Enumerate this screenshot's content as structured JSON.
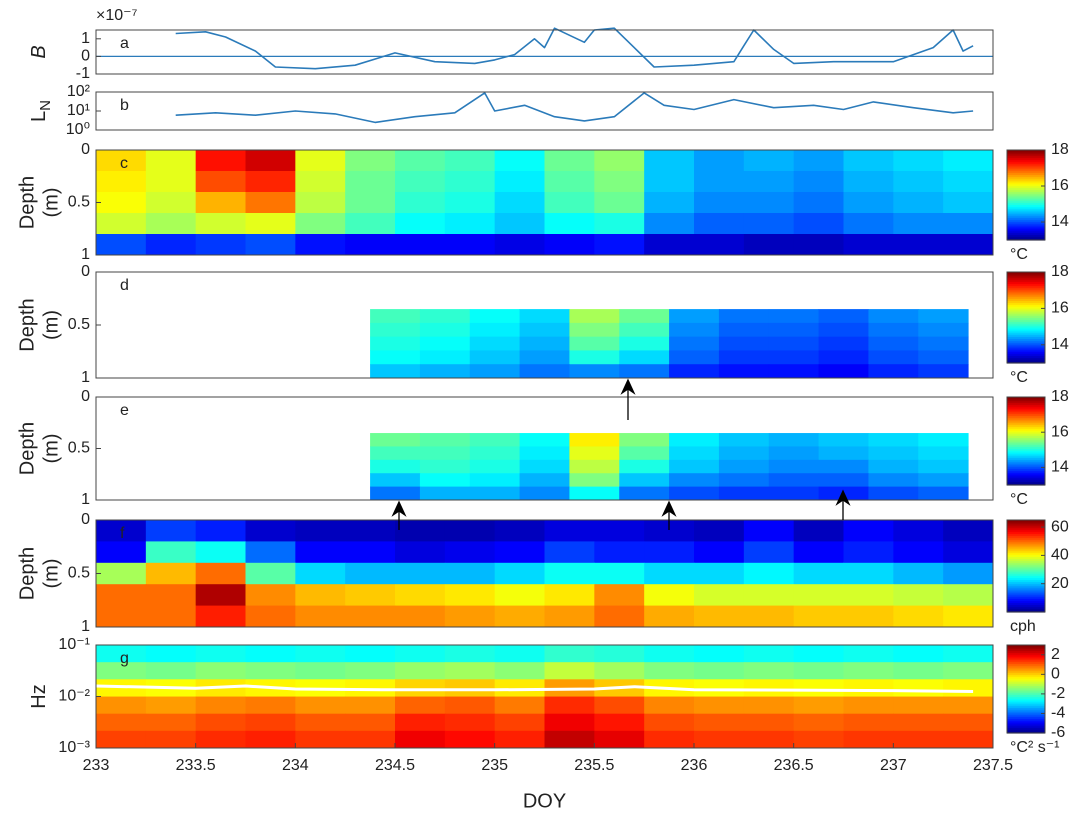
{
  "chart_data": [
    {
      "type": "line",
      "label": "a",
      "ylabel": "B",
      "exponent": "×10⁻⁷",
      "xlim": [
        233,
        237.5
      ],
      "ylim": [
        -1,
        1.5
      ],
      "yticks": [
        -1,
        0,
        1
      ],
      "hline": 0,
      "color": "#2b7bba",
      "x": [
        233.4,
        233.55,
        233.65,
        233.8,
        233.9,
        234.1,
        234.3,
        234.5,
        234.7,
        234.9,
        235.0,
        235.1,
        235.2,
        235.25,
        235.3,
        235.45,
        235.5,
        235.6,
        235.7,
        235.8,
        236.0,
        236.2,
        236.25,
        236.3,
        236.4,
        236.5,
        236.7,
        237.0,
        237.2,
        237.3,
        237.35,
        237.4
      ],
      "values": [
        1.3,
        1.4,
        1.1,
        0.3,
        -0.6,
        -0.7,
        -0.5,
        0.2,
        -0.3,
        -0.4,
        -0.2,
        0.1,
        1.0,
        0.5,
        1.6,
        0.8,
        1.5,
        1.6,
        0.5,
        -0.6,
        -0.5,
        -0.3,
        0.6,
        1.5,
        0.4,
        -0.4,
        -0.3,
        -0.3,
        0.5,
        1.5,
        0.3,
        0.6
      ]
    },
    {
      "type": "line",
      "label": "b",
      "ylabel": "L",
      "ylabel_sub": "N",
      "log": true,
      "xlim": [
        233,
        237.5
      ],
      "ylim": [
        1,
        100
      ],
      "color": "#2b7bba",
      "yticks": [
        {
          "value": 1,
          "label": "10⁰"
        },
        {
          "value": 10,
          "label": "10¹"
        },
        {
          "value": 100,
          "label": "10²"
        }
      ],
      "x": [
        233.4,
        233.6,
        233.8,
        234.0,
        234.2,
        234.4,
        234.6,
        234.8,
        234.95,
        235.0,
        235.15,
        235.3,
        235.45,
        235.6,
        235.75,
        235.85,
        236.0,
        236.2,
        236.4,
        236.6,
        236.75,
        236.9,
        237.1,
        237.3,
        237.4
      ],
      "values": [
        6,
        8,
        6,
        10,
        7,
        2.5,
        5,
        8,
        90,
        10,
        20,
        5,
        3,
        5,
        90,
        20,
        12,
        40,
        15,
        20,
        12,
        30,
        15,
        8,
        10
      ]
    },
    {
      "type": "heatmap",
      "label": "c",
      "ylabel": "Depth",
      "ylabel2": "(m)",
      "yreverse": true,
      "xlim": [
        233,
        237.5
      ],
      "ylim": [
        0,
        1
      ],
      "yticks": [
        0,
        0.5,
        1
      ],
      "clim": [
        13,
        18
      ],
      "cticks": [
        14,
        16,
        18
      ],
      "cunit": "°C",
      "x": [
        233.125,
        233.375,
        233.625,
        233.875,
        234.125,
        234.375,
        234.625,
        234.875,
        235.125,
        235.375,
        235.625,
        235.875,
        236.125,
        236.375,
        236.625,
        236.875,
        237.125,
        237.375
      ],
      "y": [
        0.1,
        0.3,
        0.5,
        0.7,
        0.9
      ],
      "z": [
        [
          16.3,
          16.0,
          17.3,
          17.6,
          16.0,
          15.5,
          15.3,
          15.2,
          14.9,
          15.4,
          15.6,
          14.6,
          14.4,
          14.5,
          14.4,
          14.6,
          14.7,
          14.8
        ],
        [
          16.2,
          16.0,
          17.0,
          17.2,
          15.9,
          15.4,
          15.2,
          15.1,
          14.8,
          15.3,
          15.5,
          14.6,
          14.4,
          14.4,
          14.3,
          14.5,
          14.6,
          14.7
        ],
        [
          16.1,
          15.9,
          16.5,
          16.8,
          15.8,
          15.4,
          15.1,
          15.0,
          14.7,
          15.2,
          15.4,
          14.5,
          14.3,
          14.3,
          14.2,
          14.4,
          14.5,
          14.6
        ],
        [
          15.9,
          15.7,
          15.9,
          16.0,
          15.5,
          15.2,
          14.9,
          14.8,
          14.6,
          14.9,
          15.0,
          14.3,
          14.1,
          14.1,
          14.0,
          14.2,
          14.3,
          14.3
        ],
        [
          14.0,
          13.8,
          13.9,
          14.0,
          13.7,
          13.6,
          13.6,
          13.6,
          13.5,
          13.6,
          13.7,
          13.4,
          13.4,
          13.3,
          13.3,
          13.4,
          13.4,
          13.4
        ]
      ]
    },
    {
      "type": "heatmap",
      "label": "d",
      "ylabel": "Depth",
      "ylabel2": "(m)",
      "yreverse": true,
      "xlim": [
        233,
        237.5
      ],
      "ylim": [
        0,
        1
      ],
      "yticks": [
        0,
        0.5,
        1
      ],
      "clim": [
        13,
        18
      ],
      "cticks": [
        14,
        16,
        18
      ],
      "cunit": "°C",
      "x": [
        234.5,
        234.75,
        235.0,
        235.25,
        235.5,
        235.75,
        236.0,
        236.25,
        236.5,
        236.75,
        237.0,
        237.25
      ],
      "y": [
        0.415,
        0.545,
        0.675,
        0.805,
        0.935
      ],
      "z": [
        [
          15.2,
          15.1,
          14.9,
          14.7,
          15.7,
          15.4,
          14.4,
          14.2,
          14.2,
          14.1,
          14.3,
          14.4
        ],
        [
          15.1,
          15.0,
          14.8,
          14.6,
          15.5,
          15.2,
          14.3,
          14.1,
          14.1,
          14.0,
          14.2,
          14.3
        ],
        [
          15.0,
          14.9,
          14.7,
          14.5,
          15.3,
          15.0,
          14.2,
          14.0,
          14.0,
          13.9,
          14.1,
          14.2
        ],
        [
          14.9,
          14.8,
          14.6,
          14.4,
          15.0,
          14.7,
          14.1,
          13.9,
          13.9,
          13.8,
          14.0,
          14.1
        ],
        [
          14.6,
          14.5,
          14.4,
          14.2,
          14.3,
          14.2,
          13.8,
          13.7,
          13.7,
          13.6,
          13.8,
          13.9
        ]
      ]
    },
    {
      "type": "heatmap",
      "label": "e",
      "ylabel": "Depth",
      "ylabel2": "(m)",
      "yreverse": true,
      "xlim": [
        233,
        237.5
      ],
      "ylim": [
        0,
        1
      ],
      "yticks": [
        0,
        0.5,
        1
      ],
      "clim": [
        13,
        18
      ],
      "cticks": [
        14,
        16,
        18
      ],
      "cunit": "°C",
      "x": [
        234.5,
        234.75,
        235.0,
        235.25,
        235.5,
        235.75,
        236.0,
        236.25,
        236.5,
        236.75,
        237.0,
        237.25
      ],
      "y": [
        0.415,
        0.545,
        0.675,
        0.805,
        0.935
      ],
      "z": [
        [
          15.4,
          15.3,
          15.2,
          14.9,
          16.2,
          15.5,
          14.8,
          14.6,
          14.5,
          14.6,
          14.7,
          14.8
        ],
        [
          15.2,
          15.2,
          15.1,
          14.8,
          16.0,
          15.3,
          14.7,
          14.5,
          14.4,
          14.5,
          14.6,
          14.7
        ],
        [
          15.0,
          15.1,
          15.0,
          14.7,
          15.8,
          15.0,
          14.6,
          14.4,
          14.3,
          14.3,
          14.5,
          14.6
        ],
        [
          14.6,
          14.9,
          14.8,
          14.5,
          15.5,
          14.6,
          14.3,
          14.2,
          14.1,
          14.1,
          14.3,
          14.4
        ],
        [
          14.2,
          14.5,
          14.5,
          14.3,
          14.9,
          14.2,
          14.0,
          13.9,
          13.9,
          13.8,
          14.0,
          14.1
        ]
      ]
    },
    {
      "type": "heatmap",
      "label": "f",
      "ylabel": "Depth",
      "ylabel2": "(m)",
      "yreverse": true,
      "xlim": [
        233,
        237.5
      ],
      "ylim": [
        0,
        1
      ],
      "yticks": [
        0,
        0.5,
        1
      ],
      "clim": [
        0,
        65
      ],
      "cticks": [
        20,
        40,
        60
      ],
      "cunit": "cph",
      "x": [
        233.125,
        233.375,
        233.625,
        233.875,
        234.125,
        234.375,
        234.625,
        234.875,
        235.125,
        235.375,
        235.625,
        235.875,
        236.125,
        236.375,
        236.625,
        236.875,
        237.125,
        237.375
      ],
      "y": [
        0.1,
        0.3,
        0.5,
        0.7,
        0.9
      ],
      "z": [
        [
          5,
          12,
          10,
          5,
          4,
          4,
          3,
          3,
          4,
          6,
          6,
          5,
          4,
          8,
          4,
          8,
          6,
          4
        ],
        [
          8,
          28,
          25,
          15,
          8,
          8,
          6,
          7,
          8,
          12,
          10,
          10,
          8,
          12,
          8,
          10,
          8,
          6
        ],
        [
          35,
          45,
          50,
          30,
          22,
          20,
          20,
          20,
          22,
          25,
          25,
          22,
          22,
          24,
          22,
          22,
          20,
          18
        ],
        [
          50,
          50,
          62,
          48,
          45,
          44,
          43,
          42,
          40,
          42,
          48,
          40,
          38,
          38,
          38,
          38,
          37,
          36
        ],
        [
          50,
          50,
          55,
          50,
          48,
          48,
          48,
          47,
          46,
          47,
          50,
          46,
          45,
          45,
          44,
          44,
          43,
          42
        ]
      ]
    },
    {
      "type": "heatmap",
      "label": "g",
      "ylabel": "Hz",
      "log": true,
      "xlim": [
        233,
        237.5
      ],
      "ylim": [
        0.001,
        0.1
      ],
      "yticks": [
        {
          "value": 0.001,
          "label": "10⁻³"
        },
        {
          "value": 0.01,
          "label": "10⁻²"
        },
        {
          "value": 0.1,
          "label": "10⁻¹"
        }
      ],
      "clim": [
        -6,
        3
      ],
      "cticks": [
        2,
        0,
        -2,
        -4,
        -6
      ],
      "cunit": "°C² s⁻¹",
      "x": [
        233.125,
        233.375,
        233.625,
        233.875,
        234.125,
        234.375,
        234.625,
        234.875,
        235.125,
        235.375,
        235.625,
        235.875,
        236.125,
        236.375,
        236.625,
        236.875,
        237.125,
        237.375
      ],
      "y": [
        0.068,
        0.0316,
        0.0147,
        0.0068,
        0.00316,
        0.00147
      ],
      "z": [
        [
          -2.5,
          -2.6,
          -2.5,
          -2.6,
          -2.5,
          -2.6,
          -2.5,
          -2.4,
          -2.5,
          -2.2,
          -2.3,
          -2.5,
          -2.6,
          -2.5,
          -2.6,
          -2.5,
          -2.6,
          -2.5
        ],
        [
          -1.5,
          -1.6,
          -1.4,
          -1.5,
          -1.6,
          -1.5,
          -1.3,
          -1.2,
          -1.4,
          -0.9,
          -1.2,
          -1.5,
          -1.6,
          -1.5,
          -1.6,
          -1.5,
          -1.6,
          -1.5
        ],
        [
          -0.3,
          -0.4,
          -0.2,
          -0.3,
          -0.4,
          -0.3,
          0,
          0.1,
          -0.2,
          0.5,
          0.1,
          -0.3,
          -0.4,
          -0.3,
          -0.4,
          -0.3,
          -0.4,
          -0.3
        ],
        [
          0.6,
          0.5,
          0.7,
          0.8,
          0.6,
          0.6,
          1.0,
          1.1,
          0.8,
          1.5,
          1.2,
          0.7,
          0.6,
          0.6,
          0.5,
          0.6,
          0.6,
          0.6
        ],
        [
          1.0,
          1.0,
          1.2,
          1.3,
          1.1,
          1.1,
          1.6,
          1.5,
          1.3,
          2.0,
          1.7,
          1.2,
          1.1,
          1.1,
          1.0,
          1.1,
          1.1,
          1.1
        ],
        [
          1.3,
          1.3,
          1.5,
          1.6,
          1.4,
          1.4,
          2.0,
          1.8,
          1.6,
          2.4,
          2.1,
          1.5,
          1.4,
          1.4,
          1.3,
          1.4,
          1.4,
          1.4
        ]
      ],
      "line": {
        "color": "#ffffff",
        "x": [
          233,
          233.5,
          233.75,
          234,
          234.5,
          235,
          235.5,
          235.7,
          236,
          236.5,
          237,
          237.4
        ],
        "values": [
          0.016,
          0.0145,
          0.016,
          0.014,
          0.0135,
          0.0135,
          0.014,
          0.0155,
          0.0135,
          0.0133,
          0.013,
          0.0125
        ]
      },
      "xticks": [
        233,
        233.5,
        234,
        234.5,
        235,
        235.5,
        236,
        236.5,
        237,
        237.5
      ],
      "xlabel": "DOY"
    }
  ]
}
